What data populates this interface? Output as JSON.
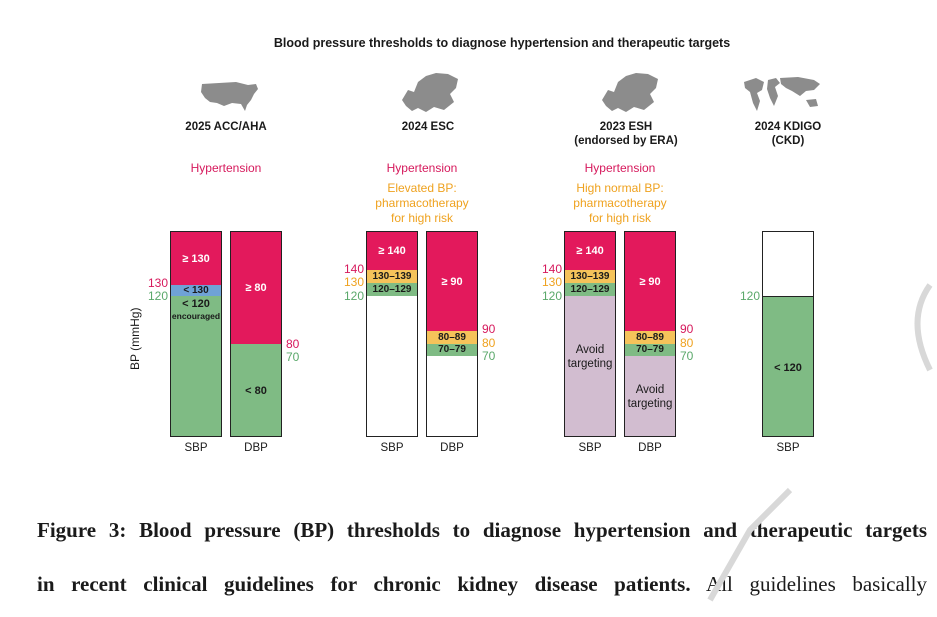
{
  "figure": {
    "title": "Blood pressure thresholds to diagnose hypertension and therapeutic targets",
    "y_axis_label": "BP (mmHg)"
  },
  "colors": {
    "hypertension": "#e3195c",
    "elevated": "#f5c35a",
    "target": "#7fbb84",
    "blue_band": "#6fa2d6",
    "avoid": "#d2bdd0",
    "map": "#8c8c8c"
  },
  "groups": [
    {
      "title": "2025 ACC/AHA",
      "map_icon": "usa-map-icon",
      "notes": {
        "hypertension": "Hypertension"
      },
      "bars": [
        {
          "label": "SBP",
          "segments": [
            {
              "text": "≥ 130",
              "color": "hypertension"
            },
            {
              "text": "< 130",
              "color": "blue_band"
            },
            {
              "text": "< 120",
              "subtext": "encouraged",
              "color": "target"
            }
          ]
        },
        {
          "label": "DBP",
          "segments": [
            {
              "text": "≥ 80",
              "color": "hypertension"
            },
            {
              "text": "< 80",
              "color": "target"
            }
          ]
        }
      ],
      "ticks_left": [
        "130",
        "120"
      ],
      "ticks_right": [
        "80",
        "70"
      ]
    },
    {
      "title": "2024 ESC",
      "map_icon": "europe-map-icon",
      "notes": {
        "hypertension": "Hypertension",
        "secondary": "Elevated BP:\npharmacotherapy\nfor high risk"
      },
      "bars": [
        {
          "label": "SBP",
          "segments": [
            {
              "text": "≥ 140",
              "color": "hypertension"
            },
            {
              "text": "130–139",
              "color": "elevated"
            },
            {
              "text": "120–129",
              "color": "target"
            }
          ]
        },
        {
          "label": "DBP",
          "segments": [
            {
              "text": "≥ 90",
              "color": "hypertension"
            },
            {
              "text": "80–89",
              "color": "elevated"
            },
            {
              "text": "70–79",
              "color": "target"
            }
          ]
        }
      ],
      "ticks_left": [
        "140",
        "130",
        "120"
      ],
      "ticks_right": [
        "90",
        "80",
        "70"
      ]
    },
    {
      "title": "2023 ESH\n(endorsed by ERA)",
      "map_icon": "europe-map-icon",
      "notes": {
        "hypertension": "Hypertension",
        "secondary": "High normal BP:\npharmacotherapy\nfor high risk"
      },
      "bars": [
        {
          "label": "SBP",
          "segments": [
            {
              "text": "≥ 140",
              "color": "hypertension"
            },
            {
              "text": "130–139",
              "color": "elevated"
            },
            {
              "text": "120–129",
              "color": "target"
            },
            {
              "text": "Avoid\ntargeting",
              "color": "avoid"
            }
          ]
        },
        {
          "label": "DBP",
          "segments": [
            {
              "text": "≥ 90",
              "color": "hypertension"
            },
            {
              "text": "80–89",
              "color": "elevated"
            },
            {
              "text": "70–79",
              "color": "target"
            },
            {
              "text": "Avoid\ntargeting",
              "color": "avoid"
            }
          ]
        }
      ],
      "ticks_left": [
        "140",
        "130",
        "120"
      ],
      "ticks_right": [
        "90",
        "80",
        "70"
      ]
    },
    {
      "title": "2024 KDIGO\n(CKD)",
      "map_icon": "world-map-icon",
      "notes": {},
      "bars": [
        {
          "label": "SBP",
          "segments": [
            {
              "text": "< 120",
              "color": "target"
            }
          ]
        }
      ],
      "ticks_left": [
        "120"
      ],
      "ticks_right": []
    }
  ],
  "caption": {
    "bold_line1": "Figure 3: Blood pressure (BP) thresholds to diagnose hypertension and therapeutic targets",
    "bold_line2": "in recent clinical guidelines for chronic kidney disease patients.",
    "normal_line2": " All guidelines basically"
  }
}
